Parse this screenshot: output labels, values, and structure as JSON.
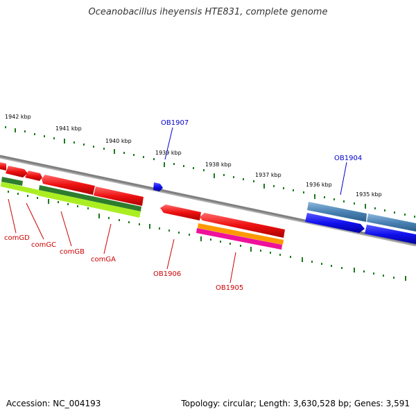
{
  "title": "Oceanobacillus iheyensis HTE831, complete genome",
  "footer": {
    "accession": "Accession: NC_004193",
    "stats": "Topology: circular; Length: 3,630,528 bp; Genes: 3,591"
  },
  "ruler": [
    "1942 kbp",
    "1941 kbp",
    "1940 kbp",
    "1939 kbp",
    "1938 kbp",
    "1937 kbp",
    "1936 kbp",
    "1935 kbp"
  ],
  "genes": {
    "comGD": "comGD",
    "comGC": "comGC",
    "comGB": "comGB",
    "comGA": "comGA",
    "OB1907": "OB1907",
    "OB1906": "OB1906",
    "OB1905": "OB1905",
    "OB1904": "OB1904"
  },
  "colors": {
    "backbone": "#808080",
    "ticks": "#1a7a1a",
    "gene_red": "#ee1111",
    "gene_blue": "#1111ee",
    "gene_steel": "#4a82b4",
    "green_dark": "#2e7d2e",
    "green_light": "#aaee22",
    "orange": "#ff9900",
    "magenta": "#ee1199",
    "label_red": "#cc0000",
    "label_blue": "#0000cc"
  }
}
